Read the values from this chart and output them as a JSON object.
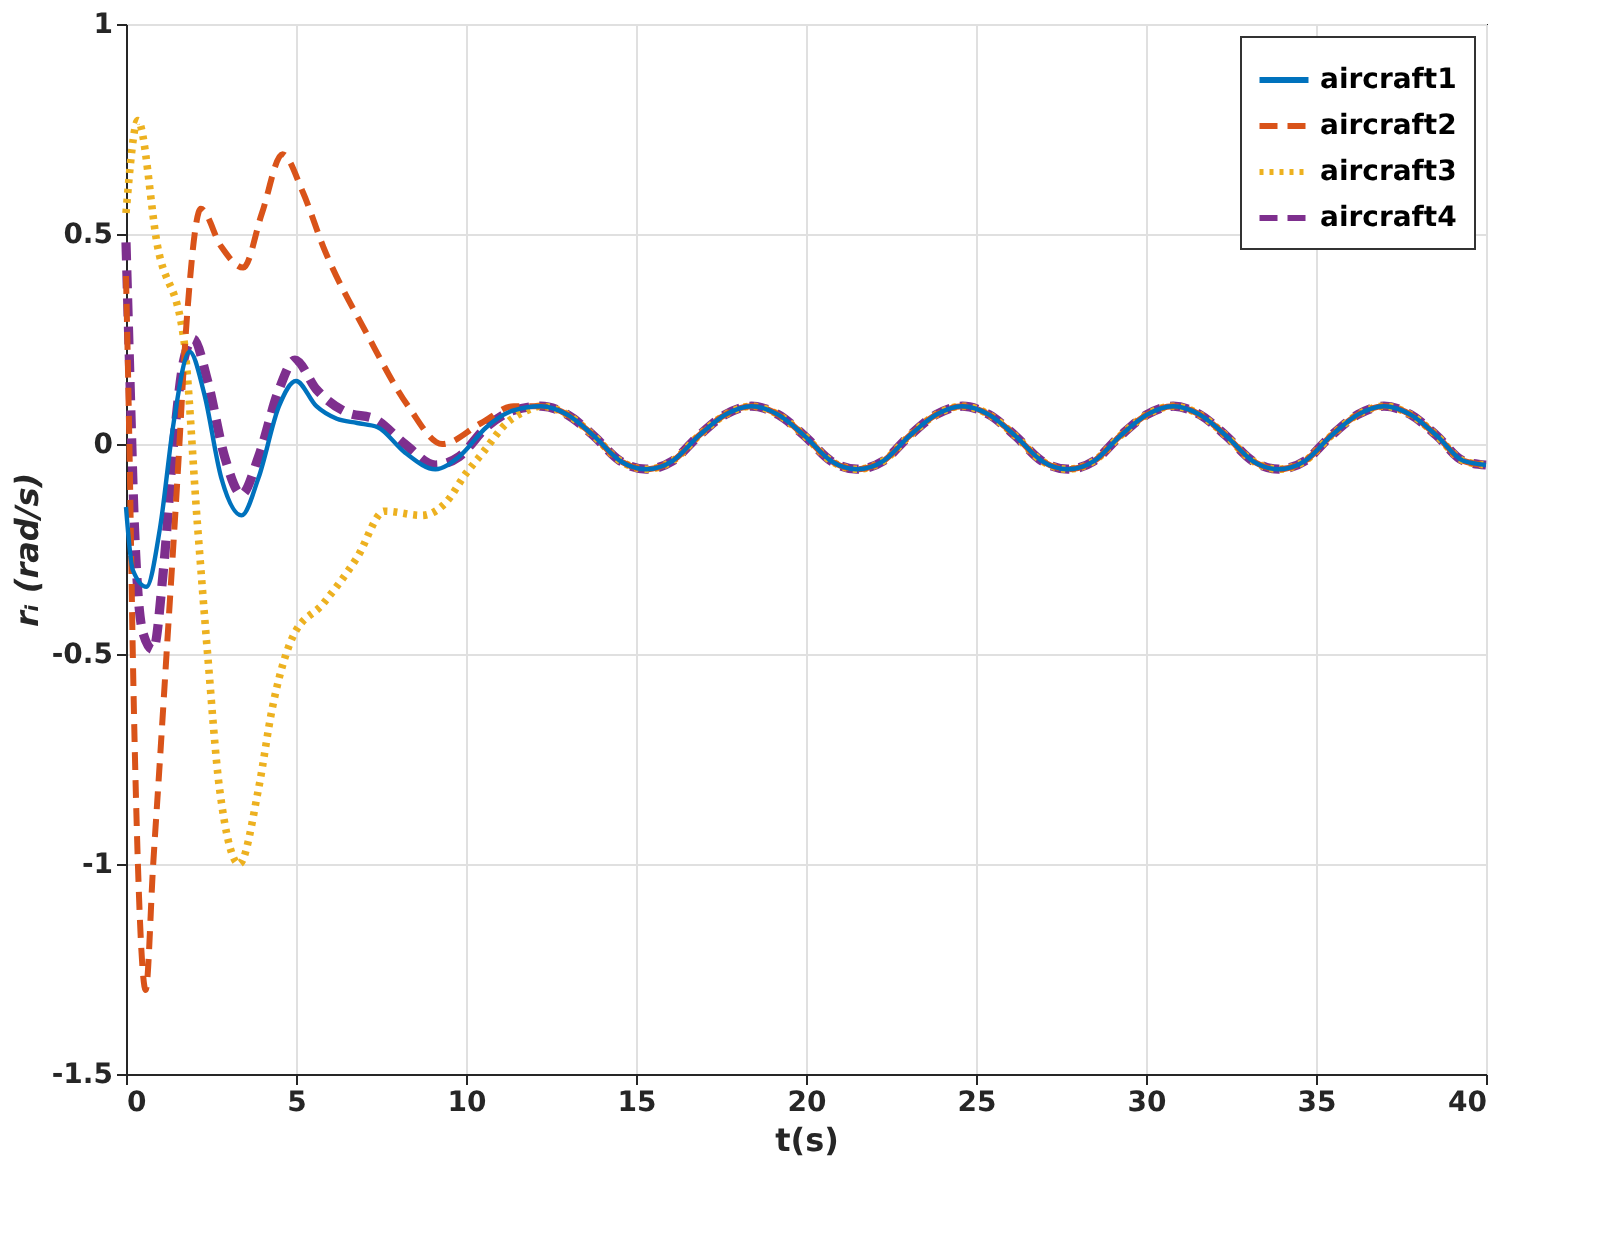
{
  "chart_data": {
    "type": "line",
    "xlabel": "t(s)",
    "ylabel": "rᵢ (rad/s)",
    "xlim": [
      0,
      40
    ],
    "xticks": [
      0,
      5,
      10,
      15,
      20,
      25,
      30,
      35,
      40
    ],
    "ylim": [
      -1.5,
      1
    ],
    "yticks": [
      -1.5,
      -1,
      -0.5,
      0,
      0.5,
      1
    ],
    "grid": true,
    "legend": "top right",
    "series": [
      {
        "name": "aircraft1",
        "color": "#0072bd",
        "line_style": "solid",
        "x": [
          0,
          0.2,
          0.6,
          1.0,
          1.4,
          1.87,
          2.3,
          2.8,
          3.4,
          3.9,
          4.5,
          5.0,
          5.6,
          6.2,
          6.8,
          7.4,
          8.2,
          9.1,
          9.8,
          10.6,
          11.4,
          12.2,
          12.98,
          13.75,
          14.53,
          15.3,
          16.08,
          16.85,
          17.63,
          18.4,
          19.18,
          19.95,
          20.73,
          21.5,
          22.28,
          23.05,
          23.83,
          24.6,
          25.38,
          26.15,
          26.93,
          27.7,
          28.48,
          29.25,
          30.03,
          30.8,
          31.58,
          32.35,
          33.13,
          33.9,
          34.68,
          35.45,
          36.23,
          37.0,
          37.78,
          38.55,
          39.33,
          40
        ],
        "values": [
          -0.15,
          -0.3,
          -0.34,
          -0.2,
          0.05,
          0.22,
          0.12,
          -0.08,
          -0.17,
          -0.08,
          0.09,
          0.15,
          0.09,
          0.06,
          0.05,
          0.04,
          -0.02,
          -0.06,
          -0.03,
          0.04,
          0.08,
          0.09,
          0.07,
          0.02,
          -0.04,
          -0.06,
          -0.04,
          0.02,
          0.07,
          0.09,
          0.07,
          0.02,
          -0.04,
          -0.06,
          -0.04,
          0.02,
          0.07,
          0.09,
          0.07,
          0.02,
          -0.04,
          -0.06,
          -0.04,
          0.02,
          0.07,
          0.09,
          0.07,
          0.02,
          -0.04,
          -0.06,
          -0.04,
          0.02,
          0.07,
          0.09,
          0.07,
          0.02,
          -0.04,
          -0.05
        ]
      },
      {
        "name": "aircraft2",
        "color": "#d95319",
        "line_style": "dashed",
        "x": [
          0,
          0.1,
          0.2,
          0.35,
          0.58,
          0.8,
          1.0,
          1.2,
          1.5,
          1.8,
          2.2,
          2.8,
          3.45,
          4.0,
          4.6,
          5.2,
          5.8,
          7.1,
          8.3,
          9.3,
          10.45,
          11.4,
          12.2,
          12.98,
          13.75,
          14.53,
          15.3,
          16.08,
          16.85,
          17.63,
          18.4,
          19.18,
          19.95,
          20.73,
          21.5,
          22.28,
          23.05,
          23.83,
          24.6,
          25.38,
          26.15,
          26.93,
          27.7,
          28.48,
          29.25,
          30.03,
          30.8,
          31.58,
          32.35,
          33.13,
          33.9,
          34.68,
          35.45,
          36.23,
          37.0,
          37.78,
          38.55,
          39.33,
          40
        ],
        "values": [
          0.4,
          0.0,
          -0.5,
          -1.0,
          -1.3,
          -1.0,
          -0.75,
          -0.49,
          -0.1,
          0.31,
          0.56,
          0.47,
          0.42,
          0.55,
          0.69,
          0.6,
          0.47,
          0.26,
          0.09,
          0.0,
          0.05,
          0.09,
          0.09,
          0.07,
          0.02,
          -0.04,
          -0.06,
          -0.04,
          0.02,
          0.07,
          0.09,
          0.07,
          0.02,
          -0.04,
          -0.06,
          -0.04,
          0.02,
          0.07,
          0.09,
          0.07,
          0.02,
          -0.04,
          -0.06,
          -0.04,
          0.02,
          0.07,
          0.09,
          0.07,
          0.02,
          -0.04,
          -0.06,
          -0.04,
          0.02,
          0.07,
          0.09,
          0.07,
          0.02,
          -0.04,
          -0.05
        ]
      },
      {
        "name": "aircraft3",
        "color": "#edb120",
        "line_style": "dotted",
        "x": [
          0,
          0.35,
          0.93,
          1.7,
          2.1,
          2.4,
          2.75,
          3.33,
          3.9,
          4.3,
          4.9,
          5.8,
          6.8,
          7.6,
          8.7,
          9.4,
          10.0,
          10.5,
          11.2,
          11.8,
          12.2,
          12.98,
          13.75,
          14.53,
          15.3,
          16.08,
          16.85,
          17.63,
          18.4,
          19.18,
          19.95,
          20.73,
          21.5,
          22.28,
          23.05,
          23.83,
          24.6,
          25.38,
          26.15,
          26.93,
          27.7,
          28.48,
          29.25,
          30.03,
          30.8,
          31.58,
          32.35,
          33.13,
          33.9,
          34.68,
          35.45,
          36.23,
          37.0,
          37.78,
          38.55,
          39.33,
          40
        ],
        "values": [
          0.55,
          0.77,
          0.47,
          0.25,
          -0.19,
          -0.5,
          -0.82,
          -1.0,
          -0.82,
          -0.63,
          -0.46,
          -0.38,
          -0.27,
          -0.16,
          -0.17,
          -0.14,
          -0.07,
          -0.02,
          0.05,
          0.08,
          0.09,
          0.07,
          0.02,
          -0.04,
          -0.06,
          -0.04,
          0.02,
          0.07,
          0.09,
          0.07,
          0.02,
          -0.04,
          -0.06,
          -0.04,
          0.02,
          0.07,
          0.09,
          0.07,
          0.02,
          -0.04,
          -0.06,
          -0.04,
          0.02,
          0.07,
          0.09,
          0.07,
          0.02,
          -0.04,
          -0.06,
          -0.04,
          0.02,
          0.07,
          0.09,
          0.07,
          0.02,
          -0.04,
          -0.05
        ]
      },
      {
        "name": "aircraft4",
        "color": "#7e2f8e",
        "line_style": "dashed",
        "x": [
          0,
          0.1,
          0.25,
          0.5,
          0.8,
          1.1,
          1.4,
          1.7,
          1.98,
          2.4,
          2.9,
          3.4,
          3.9,
          4.5,
          4.97,
          5.6,
          6.5,
          7.3,
          8.2,
          9.1,
          9.8,
          10.6,
          11.4,
          12.2,
          12.98,
          13.75,
          14.53,
          15.3,
          16.08,
          16.85,
          17.63,
          18.4,
          19.18,
          19.95,
          20.73,
          21.5,
          22.28,
          23.05,
          23.83,
          24.6,
          25.38,
          26.15,
          26.93,
          27.7,
          28.48,
          29.25,
          30.03,
          30.8,
          31.58,
          32.35,
          33.13,
          33.9,
          34.68,
          35.45,
          36.23,
          37.0,
          37.78,
          38.55,
          39.33,
          40
        ],
        "values": [
          0.48,
          0.2,
          -0.2,
          -0.45,
          -0.49,
          -0.3,
          0.0,
          0.2,
          0.25,
          0.15,
          -0.03,
          -0.12,
          -0.03,
          0.13,
          0.2,
          0.13,
          0.075,
          0.06,
          0.0,
          -0.05,
          -0.03,
          0.04,
          0.08,
          0.09,
          0.07,
          0.02,
          -0.04,
          -0.06,
          -0.04,
          0.02,
          0.07,
          0.09,
          0.07,
          0.02,
          -0.04,
          -0.06,
          -0.04,
          0.02,
          0.07,
          0.09,
          0.07,
          0.02,
          -0.04,
          -0.06,
          -0.04,
          0.02,
          0.07,
          0.09,
          0.07,
          0.02,
          -0.04,
          -0.06,
          -0.04,
          0.02,
          0.07,
          0.09,
          0.07,
          0.02,
          -0.04,
          -0.05
        ]
      }
    ]
  }
}
